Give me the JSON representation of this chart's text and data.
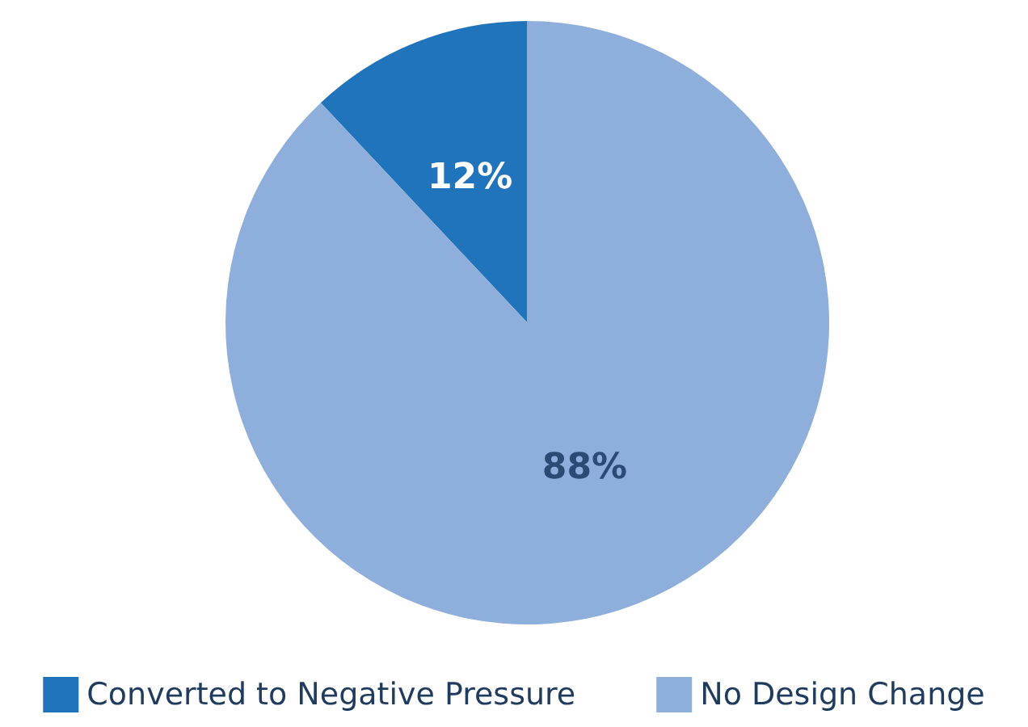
{
  "chart_data": {
    "type": "pie",
    "categories": [
      "Converted to Negative Pressure",
      "No Design Change"
    ],
    "values": [
      12,
      88
    ],
    "value_labels": [
      "12%",
      "88%"
    ],
    "colors": [
      "#1f74bb",
      "#8eaedb"
    ],
    "legend": "bottom"
  }
}
